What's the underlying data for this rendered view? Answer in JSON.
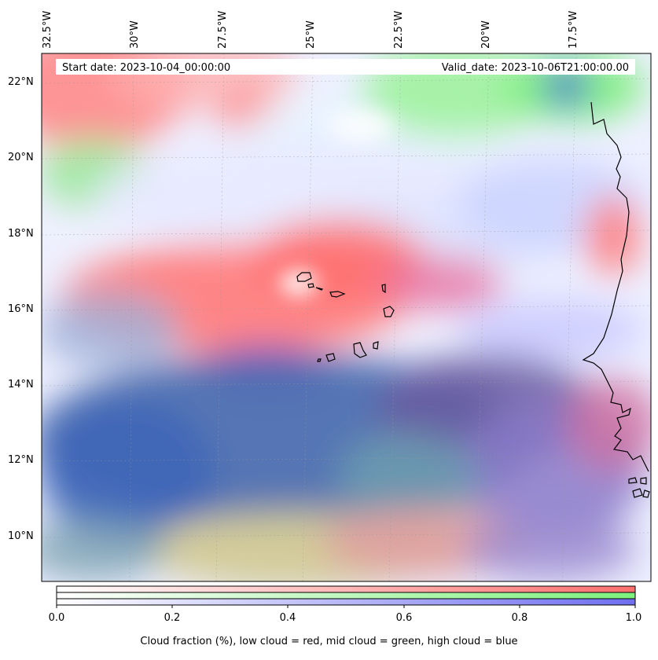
{
  "map": {
    "lon_ticks": [
      "32.5°W",
      "30°W",
      "27.5°W",
      "25°W",
      "22.5°W",
      "20°W",
      "17.5°W"
    ],
    "lat_ticks": [
      "22°N",
      "20°N",
      "18°N",
      "16°N",
      "14°N",
      "12°N",
      "10°N"
    ],
    "start_label": "Start date: 2023-10-04_00:00:00",
    "valid_label": "Valid_date: 2023-10-06T21:00:00.00",
    "layer_colors": {
      "low": "#ff6f6f",
      "mid": "#7df07d",
      "high": "#4f6fcf",
      "ocean": "#4d6fb0"
    },
    "gridlines": true
  },
  "colorbar": {
    "ticks": [
      "0.0",
      "0.2",
      "0.4",
      "0.6",
      "0.8",
      "1.0"
    ],
    "label": "Cloud fraction (%), low cloud = red, mid cloud = green, high cloud = blue",
    "colors": {
      "low": "#ff6f6f",
      "mid": "#7df07d",
      "high": "#6f6fef"
    }
  }
}
